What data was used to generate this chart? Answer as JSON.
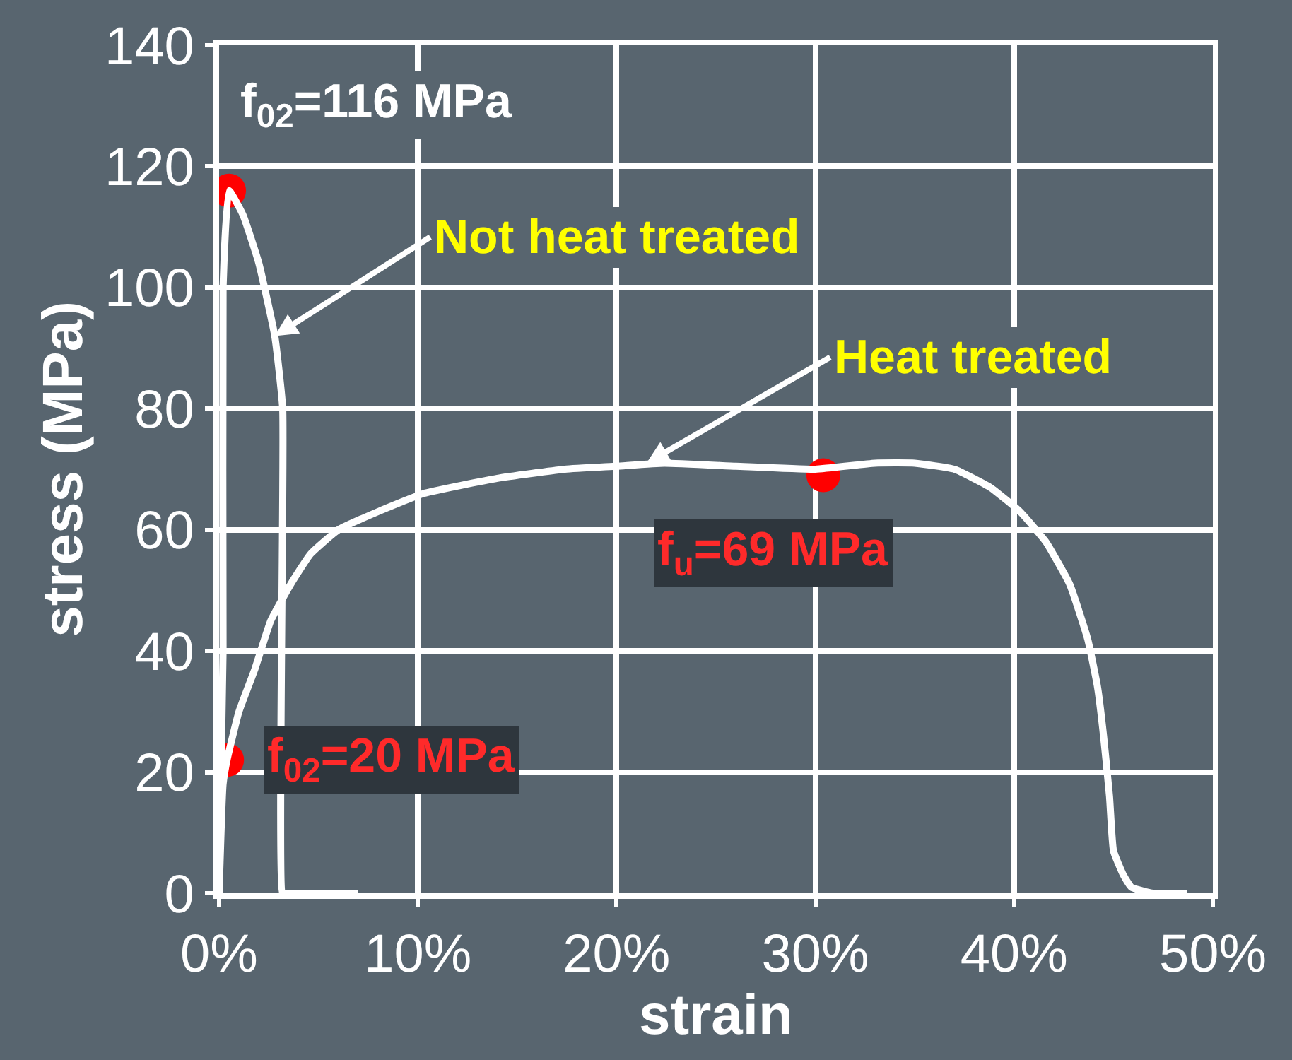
{
  "chart_data": {
    "type": "line",
    "xlabel": "strain",
    "ylabel": "stress (MPa)",
    "xlim": [
      0,
      50
    ],
    "xticks": [
      {
        "value": 0,
        "label": "0%"
      },
      {
        "value": 10,
        "label": "10%"
      },
      {
        "value": 20,
        "label": "20%"
      },
      {
        "value": 30,
        "label": "30%"
      },
      {
        "value": 40,
        "label": "40%"
      },
      {
        "value": 50,
        "label": "50%"
      }
    ],
    "ylim": [
      0,
      140
    ],
    "yticks": [
      0,
      20,
      40,
      60,
      80,
      100,
      120,
      140
    ],
    "grid": true,
    "line_style": "solid",
    "series": [
      {
        "color": "#ffffff",
        "x": [
          0,
          0.2,
          0.2,
          0.5,
          1.2,
          2.0,
          2.8,
          3.2,
          3.2,
          3.4,
          4.5,
          6,
          7
        ],
        "values": [
          0,
          40,
          100,
          116,
          112,
          104,
          92,
          80,
          0,
          0,
          0,
          0,
          0
        ]
      },
      {
        "color": "#ffffff",
        "x": [
          0,
          0.2,
          0.4,
          1.0,
          1.8,
          2.6,
          3.6,
          4.6,
          6,
          8,
          10.3,
          14,
          17.4,
          20,
          22.4,
          26,
          30,
          33,
          35,
          37,
          38.8,
          40.3,
          41.6,
          42.8,
          43.7,
          44.2,
          44.5,
          44.8,
          45.0,
          45.5,
          45.9,
          47,
          48.7
        ],
        "values": [
          0,
          18,
          22,
          30,
          37,
          45,
          51,
          56,
          60,
          63,
          66,
          68.5,
          70,
          70.5,
          71,
          70.5,
          70,
          71,
          71,
          70,
          67,
          63,
          58,
          51,
          42,
          34,
          26,
          16,
          7,
          3,
          1,
          0,
          0
        ]
      },
      {
        "type": "scatter",
        "marker": "circle",
        "color": "#ff0000",
        "x": [
          0.5,
          0.4,
          30.4
        ],
        "values": [
          116,
          22,
          69
        ]
      }
    ],
    "annotations": [
      {
        "text": "f$_{02}$=116 MPa",
        "x": 0.5,
        "y": 116
      },
      {
        "text": "Not heat treated",
        "x": 2.8,
        "y": 92
      },
      {
        "text": "Heat treated",
        "x": 21.5,
        "y": 71
      },
      {
        "text": "f$_{u}$=69 MPa",
        "x": 30.4,
        "y": 69
      },
      {
        "text": "f$_{02}$=20 MPa",
        "x": 0.4,
        "y": 22
      }
    ]
  }
}
